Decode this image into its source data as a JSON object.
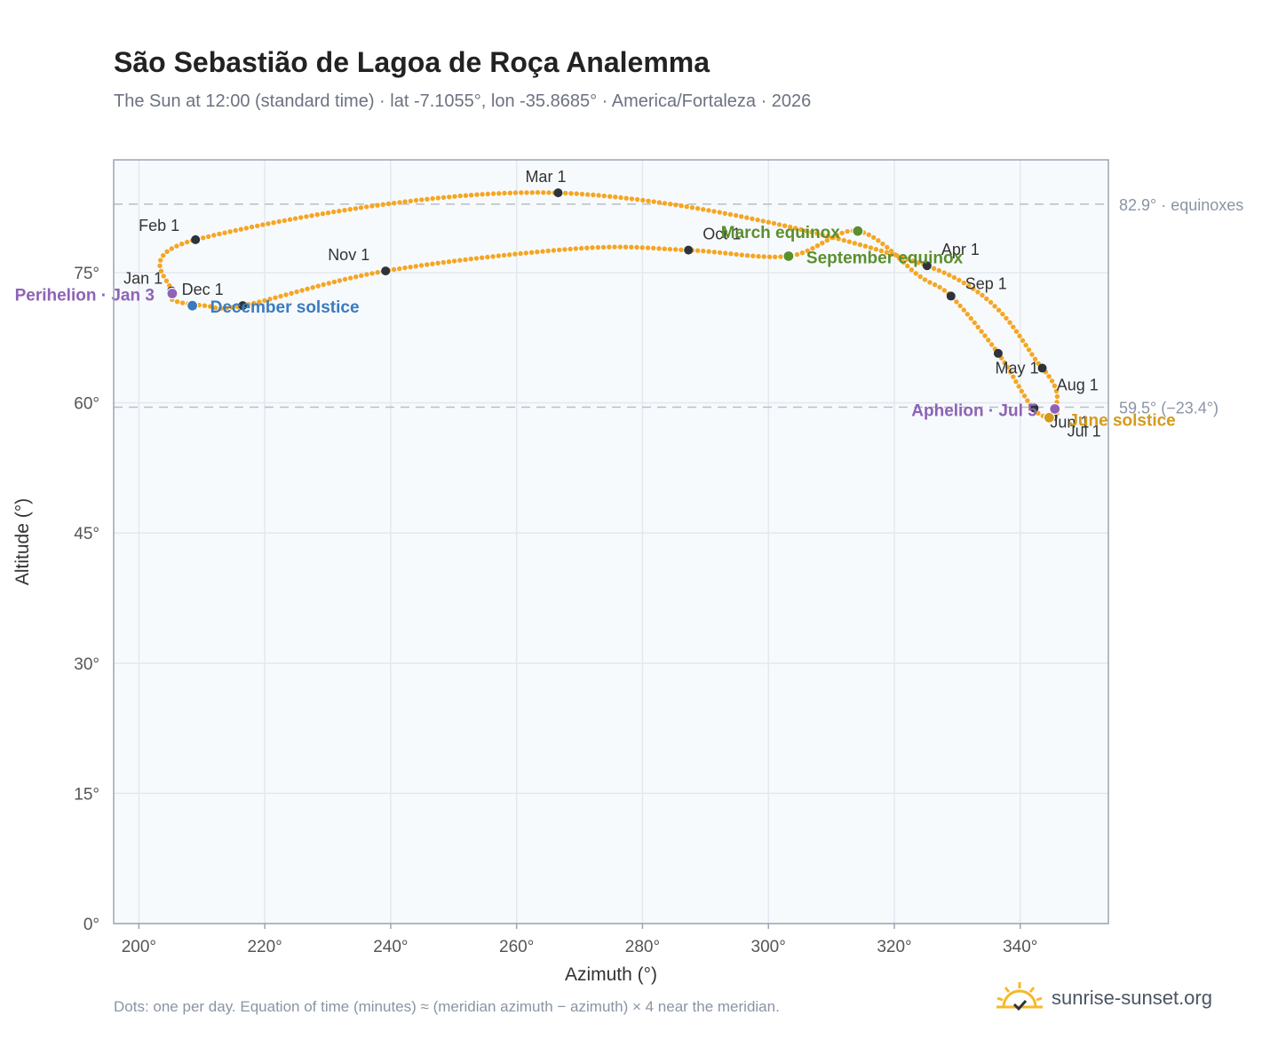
{
  "header": {
    "title": "São Sebastião de Lagoa de Roça Analemma",
    "subtitle": "The Sun at 12:00 (standard time) · lat -7.1055°, lon -35.8685° · America/Fortaleza · 2026"
  },
  "footer": {
    "note": "Dots: one per day. Equation of time (minutes) ≈ (meridian azimuth − azimuth) × 4 near the meridian.",
    "brand": "sunrise-sunset.org"
  },
  "colors": {
    "curve": "#f5a623",
    "month_point": "#2d333b",
    "equinox": "#5a8f2e",
    "december_solstice": "#3a7bbf",
    "june_solstice": "#d69a1a",
    "apsis": "#8e63b5",
    "plot_bg": "#f7fafd",
    "grid": "#e3e8ee",
    "reference_line": "#b4c0c6",
    "frame": "#9aa5b4"
  },
  "chart_data": {
    "type": "scatter",
    "title": "São Sebastião de Lagoa de Roça Analemma",
    "xlabel": "Azimuth (°)",
    "ylabel": "Altitude (°)",
    "xlim": [
      196,
      354
    ],
    "ylim": [
      0,
      88
    ],
    "xticks": [
      200,
      220,
      240,
      260,
      280,
      300,
      320,
      340
    ],
    "xtick_labels": [
      "200°",
      "220°",
      "240°",
      "260°",
      "280°",
      "300°",
      "320°",
      "340°"
    ],
    "yticks": [
      0,
      15,
      30,
      45,
      60,
      75
    ],
    "ytick_labels": [
      "0°",
      "15°",
      "30°",
      "45°",
      "60°",
      "75°"
    ],
    "grid": true,
    "reference_lines": [
      {
        "y": 82.9,
        "label": "82.9° · equinoxes"
      },
      {
        "y": 59.5,
        "label": "59.5° (−23.4°)"
      }
    ],
    "series": [
      {
        "name": "",
        "style": "daily dots",
        "x": [
          205,
          209,
          266.6,
          325.2,
          343.5,
          345.8,
          345,
          342,
          336.5,
          329,
          324,
          314.2,
          303.2,
          287.3,
          270,
          239.2,
          216.5,
          210.5,
          205.5,
          205
        ],
        "y": [
          72.9,
          78.8,
          84.2,
          75.8,
          64,
          59.3,
          58.4,
          59.4,
          65.7,
          72.3,
          74.6,
          79.8,
          76.9,
          77.6,
          77.8,
          75.2,
          71.2,
          71.2,
          71.8,
          72.9
        ]
      }
    ],
    "month_markers": [
      {
        "label": "Jan 1",
        "x": 205.2,
        "y": 72.9
      },
      {
        "label": "Feb 1",
        "x": 209.0,
        "y": 78.8
      },
      {
        "label": "Mar 1",
        "x": 266.6,
        "y": 84.2
      },
      {
        "label": "Apr 1",
        "x": 325.2,
        "y": 75.8
      },
      {
        "label": "May 1",
        "x": 343.5,
        "y": 64.0
      },
      {
        "label": "Jun 1",
        "x": 342.2,
        "y": 59.4
      },
      {
        "label": "Jul 1",
        "x": 345.2,
        "y": 58.4
      },
      {
        "label": "Aug 1",
        "x": 345.5,
        "y": 59.4
      },
      {
        "label": "",
        "x": 336.5,
        "y": 65.7
      },
      {
        "label": "Sep 1",
        "x": 329.0,
        "y": 72.3
      },
      {
        "label": "Oct 1",
        "x": 287.3,
        "y": 77.6
      },
      {
        "label": "Nov 1",
        "x": 239.2,
        "y": 75.2
      },
      {
        "label": "",
        "x": 216.5,
        "y": 71.2
      },
      {
        "label": "Dec 1",
        "x": 208.5,
        "y": 71.2
      }
    ],
    "events": [
      {
        "label": "March equinox",
        "x": 314.2,
        "y": 79.8,
        "kind": "equinox"
      },
      {
        "label": "September equinox",
        "x": 303.2,
        "y": 76.9,
        "kind": "equinox"
      },
      {
        "label": "December solstice",
        "x": 208.5,
        "y": 71.2,
        "kind": "december_solstice"
      },
      {
        "label": "June solstice",
        "x": 344.6,
        "y": 58.3,
        "kind": "june_solstice"
      },
      {
        "label": "Perihelion · Jan 3",
        "x": 205.3,
        "y": 72.6,
        "kind": "apsis"
      },
      {
        "label": "Aphelion · Jul 5",
        "x": 345.5,
        "y": 59.3,
        "kind": "apsis"
      }
    ]
  }
}
